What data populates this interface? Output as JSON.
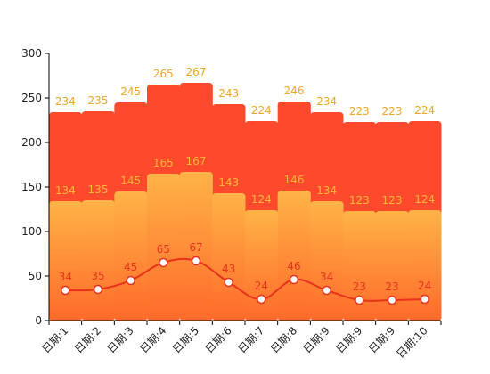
{
  "chart_data": {
    "type": "bar",
    "categories": [
      "日期:1",
      "日期:2",
      "日期:3",
      "日期:4",
      "日期:5",
      "日期:6",
      "日期:7",
      "日期:8",
      "日期:9",
      "日期:9",
      "日期:9",
      "日期:10"
    ],
    "series": [
      {
        "type": "bar",
        "values": [
          234,
          235,
          245,
          265,
          267,
          243,
          224,
          246,
          234,
          223,
          223,
          224
        ]
      },
      {
        "type": "bar",
        "values": [
          134,
          135,
          145,
          165,
          167,
          143,
          124,
          146,
          134,
          123,
          123,
          124
        ]
      },
      {
        "type": "line",
        "values": [
          34,
          35,
          45,
          65,
          67,
          43,
          24,
          46,
          34,
          23,
          23,
          24
        ]
      }
    ],
    "y_ticks": [
      0,
      50,
      100,
      150,
      200,
      250,
      300
    ],
    "ylim": [
      0,
      300
    ],
    "grid": false,
    "colors": {
      "total_bar": "#fe4a2c",
      "mid_bar_top": "#ffb347",
      "mid_bar_bottom": "#ff6a2a",
      "line": "#e8321d",
      "total_label": "#f5a623",
      "mid_label": "#f7b733",
      "line_label": "#e8321d"
    }
  }
}
